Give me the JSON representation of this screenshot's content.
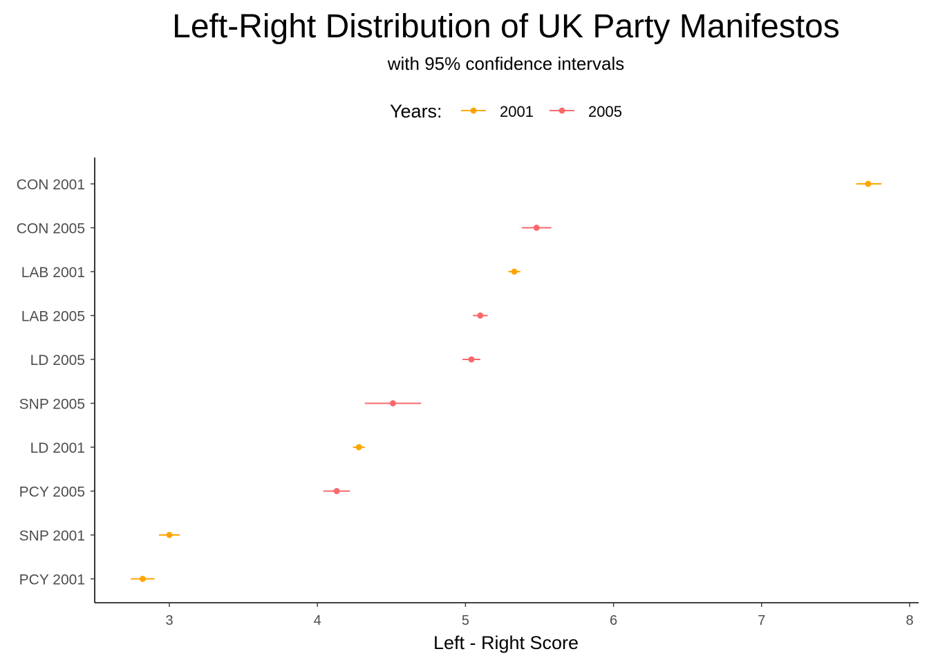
{
  "chart_data": {
    "type": "scatter",
    "title": "Left-Right Distribution of UK Party Manifestos",
    "subtitle": "with 95% confidence intervals",
    "xlabel": "Left - Right Score",
    "ylabel": "",
    "xlim": [
      2.5,
      8.05
    ],
    "x_ticks": [
      3,
      4,
      5,
      6,
      7,
      8
    ],
    "grid": false,
    "legend": {
      "title": "Years:",
      "position": "top",
      "entries": [
        {
          "label": "2001",
          "color": "#FFA500"
        },
        {
          "label": "2005",
          "color": "#F8696B"
        }
      ]
    },
    "categories": [
      "CON 2001",
      "CON 2005",
      "LAB 2001",
      "LAB 2005",
      "LD 2005",
      "SNP 2005",
      "LD 2001",
      "PCY 2005",
      "SNP 2001",
      "PCY 2001"
    ],
    "points": [
      {
        "label": "CON 2001",
        "year": "2001",
        "estimate": 7.72,
        "lower": 7.64,
        "upper": 7.81
      },
      {
        "label": "CON 2005",
        "year": "2005",
        "estimate": 5.48,
        "lower": 5.38,
        "upper": 5.58
      },
      {
        "label": "LAB 2001",
        "year": "2001",
        "estimate": 5.33,
        "lower": 5.29,
        "upper": 5.37
      },
      {
        "label": "LAB 2005",
        "year": "2005",
        "estimate": 5.1,
        "lower": 5.05,
        "upper": 5.15
      },
      {
        "label": "LD 2005",
        "year": "2005",
        "estimate": 5.04,
        "lower": 4.98,
        "upper": 5.1
      },
      {
        "label": "SNP 2005",
        "year": "2005",
        "estimate": 4.51,
        "lower": 4.32,
        "upper": 4.7
      },
      {
        "label": "LD 2001",
        "year": "2001",
        "estimate": 4.28,
        "lower": 4.24,
        "upper": 4.32
      },
      {
        "label": "PCY 2005",
        "year": "2005",
        "estimate": 4.13,
        "lower": 4.04,
        "upper": 4.22
      },
      {
        "label": "SNP 2001",
        "year": "2001",
        "estimate": 3.0,
        "lower": 2.93,
        "upper": 3.07
      },
      {
        "label": "PCY 2001",
        "year": "2001",
        "estimate": 2.82,
        "lower": 2.74,
        "upper": 2.9
      }
    ]
  }
}
